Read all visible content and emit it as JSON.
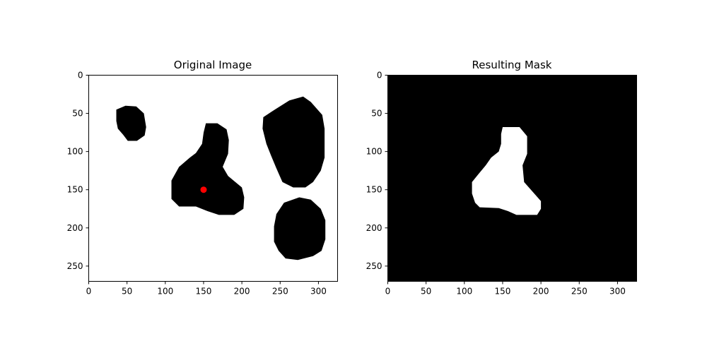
{
  "chart_data": [
    {
      "type": "image",
      "title": "Original Image",
      "xlim": [
        0,
        325
      ],
      "ylim": [
        270,
        0
      ],
      "x_ticks": [
        0,
        50,
        100,
        150,
        200,
        250,
        300
      ],
      "y_ticks": [
        0,
        50,
        100,
        150,
        200,
        250
      ],
      "background_color": "#ffffff",
      "blob_color": "#000000",
      "blobs": [
        {
          "name": "blob-small",
          "polygon": [
            [
              36,
              45
            ],
            [
              48,
              40
            ],
            [
              62,
              41
            ],
            [
              72,
              50
            ],
            [
              75,
              68
            ],
            [
              73,
              79
            ],
            [
              63,
              86
            ],
            [
              51,
              86
            ],
            [
              45,
              78
            ],
            [
              38,
              70
            ],
            [
              36,
              60
            ]
          ]
        },
        {
          "name": "blob-center",
          "polygon": [
            [
              153,
              63
            ],
            [
              168,
              63
            ],
            [
              180,
              71
            ],
            [
              183,
              85
            ],
            [
              182,
              103
            ],
            [
              175,
              120
            ],
            [
              182,
              132
            ],
            [
              200,
              147
            ],
            [
              203,
              160
            ],
            [
              202,
              175
            ],
            [
              190,
              183
            ],
            [
              170,
              183
            ],
            [
              155,
              178
            ],
            [
              140,
              172
            ],
            [
              118,
              172
            ],
            [
              108,
              162
            ],
            [
              108,
              138
            ],
            [
              118,
              120
            ],
            [
              132,
              108
            ],
            [
              140,
              102
            ],
            [
              148,
              90
            ],
            [
              150,
              75
            ]
          ]
        },
        {
          "name": "blob-top-right",
          "polygon": [
            [
              243,
              45
            ],
            [
              262,
              33
            ],
            [
              280,
              28
            ],
            [
              290,
              35
            ],
            [
              305,
              52
            ],
            [
              308,
              70
            ],
            [
              308,
              108
            ],
            [
              303,
              125
            ],
            [
              293,
              140
            ],
            [
              283,
              147
            ],
            [
              267,
              147
            ],
            [
              253,
              140
            ],
            [
              245,
              122
            ],
            [
              238,
              105
            ],
            [
              232,
              90
            ],
            [
              227,
              70
            ],
            [
              228,
              55
            ]
          ]
        },
        {
          "name": "blob-bottom-right",
          "polygon": [
            [
              245,
              182
            ],
            [
              255,
              167
            ],
            [
              275,
              160
            ],
            [
              290,
              163
            ],
            [
              303,
              175
            ],
            [
              309,
              190
            ],
            [
              309,
              215
            ],
            [
              304,
              230
            ],
            [
              293,
              237
            ],
            [
              273,
              242
            ],
            [
              257,
              240
            ],
            [
              248,
              230
            ],
            [
              242,
              218
            ],
            [
              242,
              198
            ]
          ]
        }
      ],
      "marker": {
        "x": 150,
        "y": 150,
        "color": "#ff0000"
      }
    },
    {
      "type": "image",
      "title": "Resulting Mask",
      "xlim": [
        0,
        325
      ],
      "ylim": [
        270,
        0
      ],
      "x_ticks": [
        0,
        50,
        100,
        150,
        200,
        250,
        300
      ],
      "y_ticks": [
        0,
        50,
        100,
        150,
        200,
        250
      ],
      "background_color": "#000000",
      "blob_color": "#ffffff",
      "blobs": [
        {
          "name": "mask-region",
          "polygon": [
            [
              150,
              68
            ],
            [
              172,
              68
            ],
            [
              182,
              80
            ],
            [
              182,
              103
            ],
            [
              176,
              118
            ],
            [
              178,
              140
            ],
            [
              193,
              157
            ],
            [
              200,
              165
            ],
            [
              200,
              175
            ],
            [
              195,
              183
            ],
            [
              168,
              183
            ],
            [
              157,
              178
            ],
            [
              145,
              174
            ],
            [
              120,
              173
            ],
            [
              114,
              167
            ],
            [
              110,
              155
            ],
            [
              110,
              140
            ],
            [
              118,
              130
            ],
            [
              128,
              118
            ],
            [
              135,
              108
            ],
            [
              145,
              100
            ],
            [
              148,
              90
            ],
            [
              148,
              77
            ]
          ]
        }
      ]
    }
  ]
}
